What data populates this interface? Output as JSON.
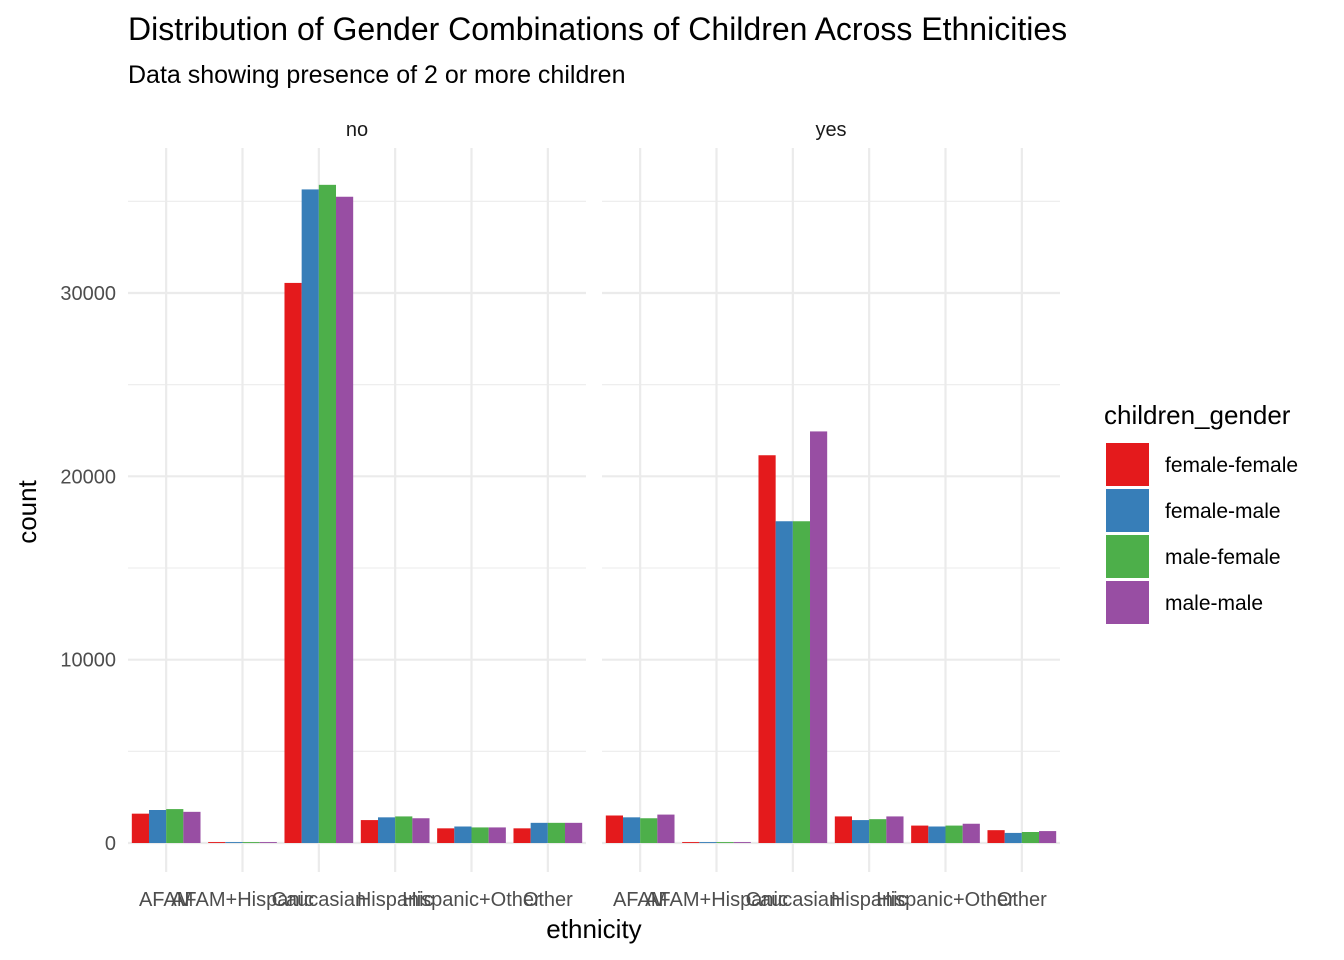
{
  "colors": {
    "female-female": "#E41A1C",
    "female-male": "#377EB8",
    "male-female": "#4DAF4A",
    "male-male": "#984EA3"
  },
  "chart_data": {
    "type": "bar",
    "title": "Distribution of Gender Combinations of Children Across Ethnicities",
    "subtitle": "Data showing presence of 2 or more children",
    "xlabel": "ethnicity",
    "ylabel": "count",
    "ylim": [
      0,
      37000
    ],
    "yticks": [
      0,
      10000,
      20000,
      30000
    ],
    "ytick_labels": [
      "0",
      "10000",
      "20000",
      "30000"
    ],
    "grid": true,
    "legend": {
      "title": "children_gender",
      "placement": "right"
    },
    "categories": [
      "AFAM",
      "AFAM+Hispanic",
      "Caucasian",
      "Hispanic",
      "Hispanic+Other",
      "Other"
    ],
    "series_names": [
      "female-female",
      "female-male",
      "male-female",
      "male-male"
    ],
    "facets": [
      {
        "label": "no",
        "series": [
          {
            "name": "female-female",
            "values": [
              1600,
              50,
              30550,
              1250,
              800,
              800
            ]
          },
          {
            "name": "female-male",
            "values": [
              1800,
              50,
              35650,
              1400,
              900,
              1100
            ]
          },
          {
            "name": "male-female",
            "values": [
              1850,
              50,
              35900,
              1450,
              850,
              1100
            ]
          },
          {
            "name": "male-male",
            "values": [
              1700,
              50,
              35250,
              1350,
              850,
              1100
            ]
          }
        ]
      },
      {
        "label": "yes",
        "series": [
          {
            "name": "female-female",
            "values": [
              1500,
              50,
              21150,
              1450,
              950,
              700
            ]
          },
          {
            "name": "female-male",
            "values": [
              1400,
              50,
              17550,
              1250,
              900,
              550
            ]
          },
          {
            "name": "male-female",
            "values": [
              1350,
              50,
              17550,
              1300,
              950,
              600
            ]
          },
          {
            "name": "male-male",
            "values": [
              1550,
              50,
              22450,
              1450,
              1050,
              650
            ]
          }
        ]
      }
    ]
  }
}
